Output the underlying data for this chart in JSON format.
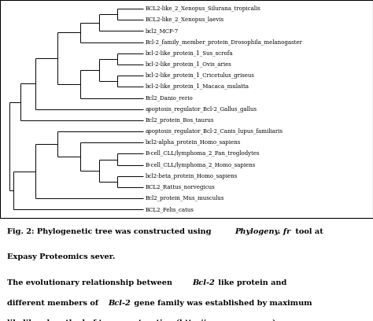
{
  "taxa": [
    "BCL2-like_2_Xenopus_Silurana_tropicalis",
    "BCL2-like_2_Xenopus_laevis",
    "bcl2_MCF-7",
    "Bcl-2_family_member_protein_Drosophila_melanogaster",
    "bcl-2-like_protein_1_Sus_scrofa",
    "bcl-2-like_protein_1_Ovis_aries",
    "bcl-2-like_protein_1_Cricetulus_griseus",
    "bcl-2-like_protein_1_Macaca_mulatta",
    "Bcl2_Danio_rerio",
    "apoptosis_regulator_Bcl-2_Gallus_gallus",
    "Bcl2_protein_Bos_taurus",
    "apoptosis_regulator_Bcl-2_Canis_lupus_familiaris",
    "bcl2-alpha_protein_Homo_sapiens",
    "B-cell_CLL/lymphoma_2_Pan_troglodytes",
    "B-cell_CLL/lymphoma_2_Homo_sapiens",
    "bcl2-beta_protein_Homo_sapiens",
    "BCL2_Rattus_norvegicus",
    "Bcl2_protein_Mus_musculus",
    "BCL2_Felis_catus"
  ],
  "background_color": "#ffffff",
  "line_color": "#000000",
  "text_color": "#000000",
  "leaf_fontsize": 5.0,
  "caption_fontsize": 7.0,
  "tree_lw": 0.7,
  "fig_width": 4.74,
  "fig_height": 4.08,
  "dpi": 100
}
